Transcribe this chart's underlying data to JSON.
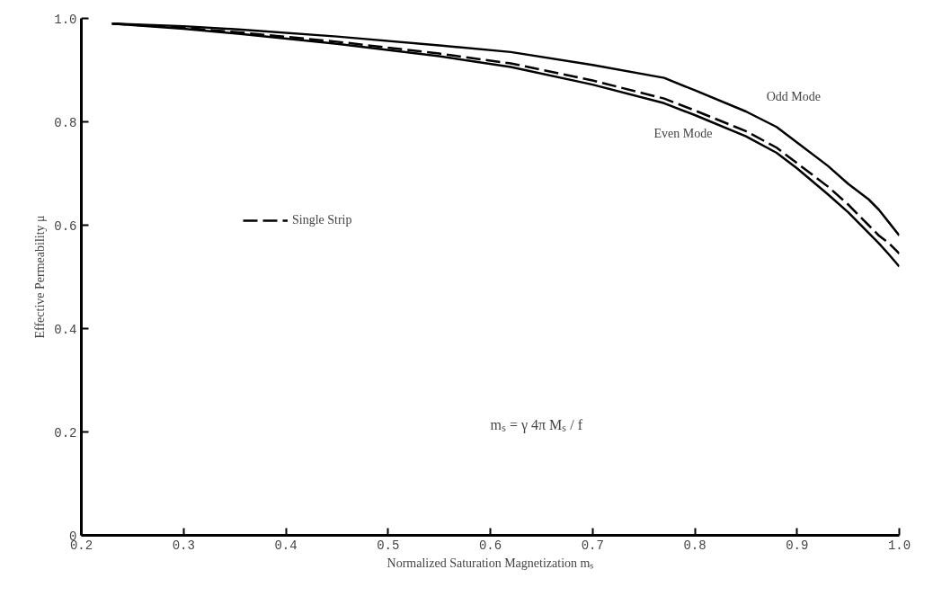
{
  "chart_data": {
    "type": "line",
    "xlabel": "Normalized Saturation Magnetization mₛ",
    "ylabel": "Effective Permeability μ",
    "x": [
      0.23,
      0.3,
      0.36,
      0.45,
      0.55,
      0.62,
      0.7,
      0.77,
      0.8,
      0.85,
      0.88,
      0.9,
      0.93,
      0.95,
      0.97,
      0.98,
      0.99,
      1.0
    ],
    "series": [
      {
        "color": "#000000",
        "line_style": "solid",
        "values": [
          0.99,
          0.985,
          0.978,
          0.965,
          0.948,
          0.935,
          0.91,
          0.885,
          0.861,
          0.82,
          0.79,
          0.76,
          0.715,
          0.68,
          0.65,
          0.63,
          0.605,
          0.58
        ]
      },
      {
        "name": "Single Strip",
        "color": "#000000",
        "line_style": "dashed",
        "values": [
          0.99,
          0.982,
          0.972,
          0.955,
          0.932,
          0.913,
          0.88,
          0.845,
          0.822,
          0.782,
          0.75,
          0.72,
          0.675,
          0.64,
          0.6,
          0.58,
          0.565,
          0.545
        ]
      },
      {
        "color": "#000000",
        "line_style": "solid",
        "values": [
          0.99,
          0.98,
          0.969,
          0.951,
          0.927,
          0.906,
          0.872,
          0.836,
          0.813,
          0.772,
          0.74,
          0.71,
          0.66,
          0.625,
          0.585,
          0.565,
          0.543,
          0.52
        ]
      }
    ],
    "annotations": [
      "Odd Mode",
      "Even Mode",
      "mₛ = γ 4π Mₛ / f"
    ],
    "xlim": [
      0.2,
      1.0
    ],
    "ylim": [
      0,
      1.0
    ],
    "xticks": [
      0.2,
      0.3,
      0.4,
      0.5,
      0.6,
      0.7,
      0.8,
      0.9,
      {
        "value": 1.0,
        "label": "1.0"
      }
    ],
    "yticks": [
      0,
      0.2,
      0.4,
      0.6,
      0.8,
      {
        "value": 1.0,
        "label": "1.0"
      }
    ],
    "grid": false,
    "legend": "left"
  }
}
